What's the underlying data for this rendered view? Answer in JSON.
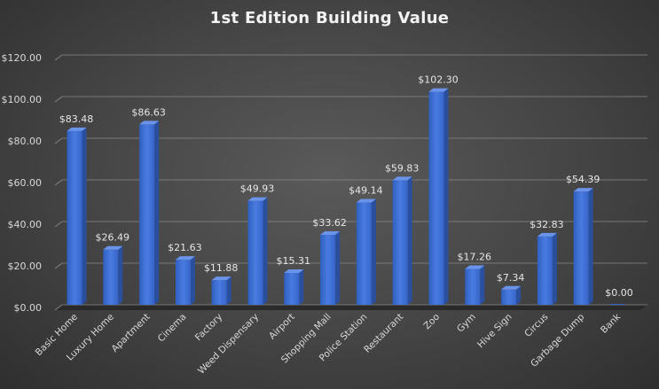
{
  "chart_data": {
    "type": "bar",
    "title": "1st Edition Building Value",
    "xlabel": "",
    "ylabel": "",
    "ylim": [
      0,
      120
    ],
    "yticks": [
      "$0.00",
      "$20.00",
      "$40.00",
      "$60.00",
      "$80.00",
      "$100.00",
      "$120.00"
    ],
    "ytick_values": [
      0,
      20,
      40,
      60,
      80,
      100,
      120
    ],
    "grid": true,
    "legend": "none",
    "bar_color": "#4472c4",
    "categories": [
      "Basic Home",
      "Luxury Home",
      "Apartment",
      "Cinema",
      "Factory",
      "Weed Dispensary",
      "Airport",
      "Shopping Mall",
      "Police Station",
      "Restaurant",
      "Zoo",
      "Gym",
      "Hive Sign",
      "Circus",
      "Garbage Dump",
      "Bank"
    ],
    "values": [
      83.48,
      26.49,
      86.63,
      21.63,
      11.88,
      49.93,
      15.31,
      33.62,
      49.14,
      59.83,
      102.3,
      17.26,
      7.34,
      32.83,
      54.39,
      0.0
    ],
    "data_labels": [
      "$83.48",
      "$26.49",
      "$86.63",
      "$21.63",
      "$11.88",
      "$49.93",
      "$15.31",
      "$33.62",
      "$49.14",
      "$59.83",
      "$102.30",
      "$17.26",
      "$7.34",
      "$32.83",
      "$54.39",
      "$0.00"
    ]
  }
}
